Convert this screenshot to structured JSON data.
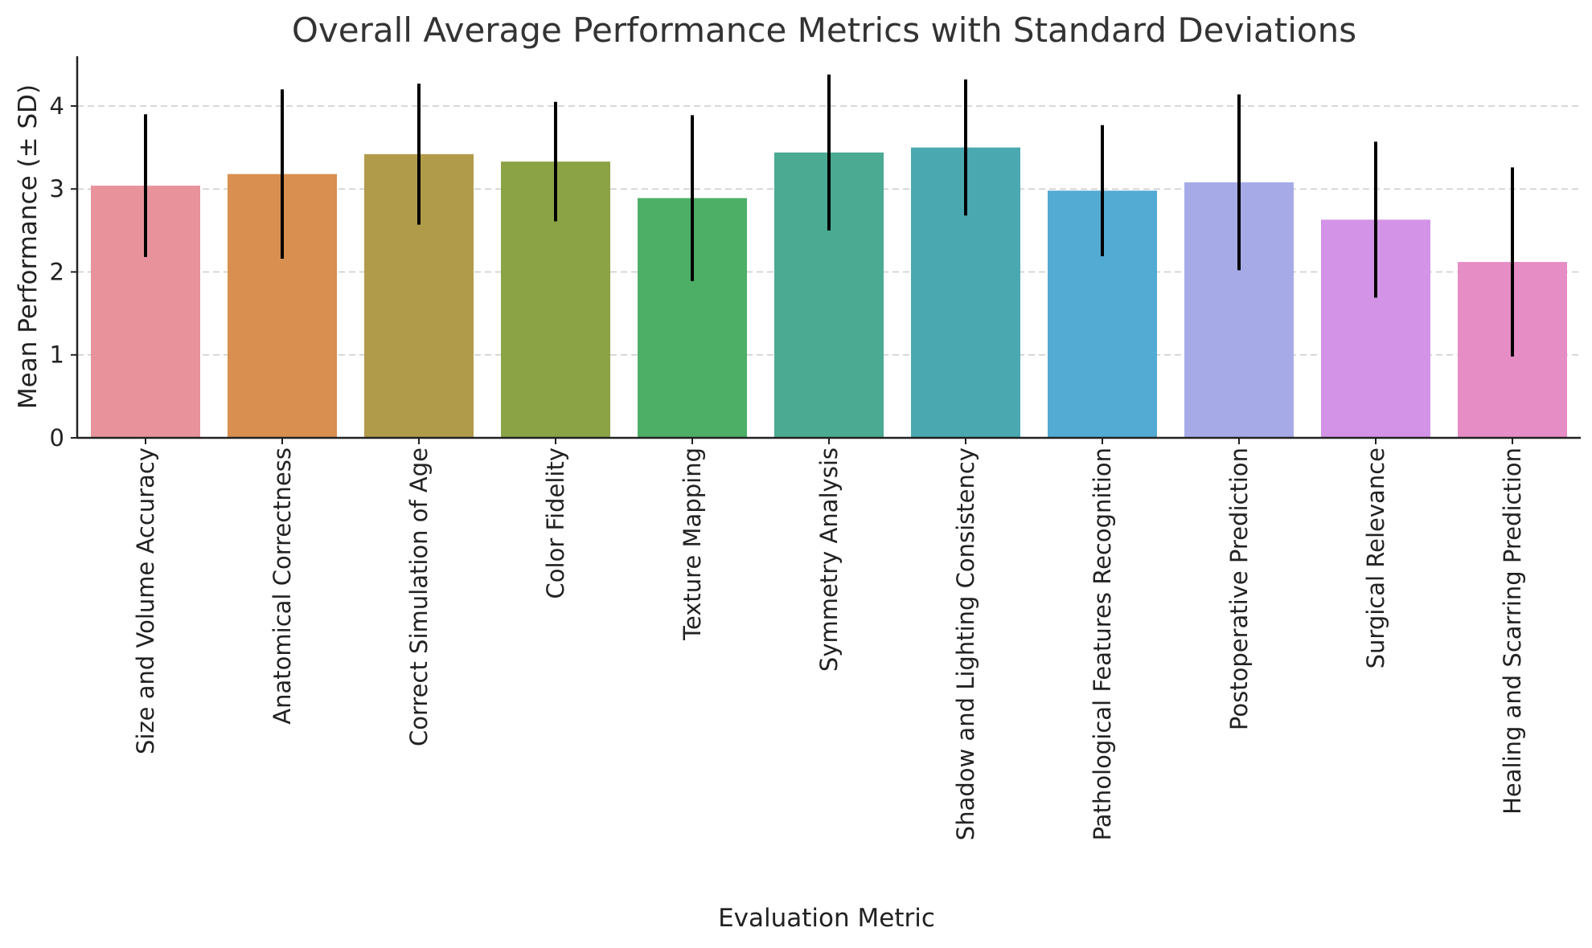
{
  "chart_data": {
    "type": "bar",
    "title": "Overall Average Performance Metrics with Standard Deviations",
    "xlabel": "Evaluation Metric",
    "ylabel": "Mean Performance (± SD)",
    "ylim": [
      0,
      4.6
    ],
    "yticks": [
      0,
      1,
      2,
      3,
      4
    ],
    "grid": "y-dashed",
    "categories": [
      "Size and Volume Accuracy",
      "Anatomical Correctness",
      "Correct Simulation of Age",
      "Color Fidelity",
      "Texture Mapping",
      "Symmetry Analysis",
      "Shadow and Lighting Consistency",
      "Pathological Features Recognition",
      "Postoperative Prediction",
      "Surgical Relevance",
      "Healing and Scarring Prediction"
    ],
    "values": [
      3.04,
      3.18,
      3.42,
      3.33,
      2.89,
      3.44,
      3.5,
      2.98,
      3.08,
      2.63,
      2.12
    ],
    "std": [
      0.86,
      1.02,
      0.85,
      0.72,
      1.0,
      0.94,
      0.82,
      0.79,
      1.06,
      0.94,
      1.14
    ],
    "colors": [
      "#e8939c",
      "#d88f4f",
      "#b09b4a",
      "#8ba345",
      "#4caf65",
      "#4aaa92",
      "#4aa8b1",
      "#53aad2",
      "#a6abe8",
      "#d393e6",
      "#e78dc6"
    ],
    "error_bar_color": "#000000"
  }
}
